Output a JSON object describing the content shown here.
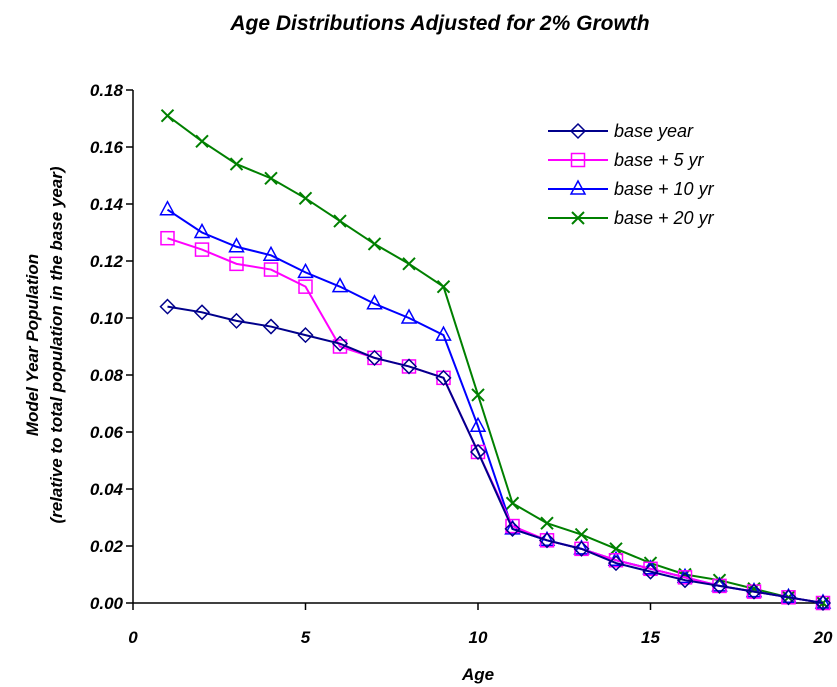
{
  "chart_data": {
    "type": "line",
    "title": "Age Distributions Adjusted for 2% Growth",
    "xlabel": "Age",
    "ylabel_line1": "Model Year Population",
    "ylabel_line2": "(relative to total population in the base year)",
    "xlim": [
      0,
      20
    ],
    "ylim": [
      0,
      0.18
    ],
    "x_ticks": [
      "0",
      "5",
      "10",
      "15",
      "20"
    ],
    "y_ticks": [
      "0.00",
      "0.02",
      "0.04",
      "0.06",
      "0.08",
      "0.10",
      "0.12",
      "0.14",
      "0.16",
      "0.18"
    ],
    "grid": false,
    "legend_position": "top-right",
    "x": [
      1,
      2,
      3,
      4,
      5,
      6,
      7,
      8,
      9,
      10,
      11,
      12,
      13,
      14,
      15,
      16,
      17,
      18,
      19,
      20
    ],
    "series": [
      {
        "name": "base year",
        "color": "#00008b",
        "marker": "diamond",
        "values": [
          0.104,
          0.102,
          0.099,
          0.097,
          0.094,
          0.091,
          0.086,
          0.083,
          0.079,
          0.053,
          0.026,
          0.022,
          0.019,
          0.014,
          0.011,
          0.008,
          0.006,
          0.004,
          0.002,
          0.0
        ]
      },
      {
        "name": "base + 5 yr",
        "color": "#ff00ff",
        "marker": "square",
        "values": [
          0.128,
          0.124,
          0.119,
          0.117,
          0.111,
          0.09,
          0.086,
          0.083,
          0.079,
          0.053,
          0.027,
          0.022,
          0.019,
          0.015,
          0.012,
          0.009,
          0.006,
          0.004,
          0.002,
          0.0
        ]
      },
      {
        "name": "base + 10 yr",
        "color": "#0000ff",
        "marker": "triangle",
        "values": [
          0.138,
          0.13,
          0.125,
          0.122,
          0.116,
          0.111,
          0.105,
          0.1,
          0.094,
          0.062,
          0.026,
          0.022,
          0.019,
          0.015,
          0.012,
          0.009,
          0.006,
          0.004,
          0.002,
          0.0
        ]
      },
      {
        "name": "base + 20 yr",
        "color": "#008000",
        "marker": "x",
        "values": [
          0.171,
          0.162,
          0.154,
          0.149,
          0.142,
          0.134,
          0.126,
          0.119,
          0.111,
          0.073,
          0.035,
          0.028,
          0.024,
          0.019,
          0.014,
          0.01,
          0.008,
          0.005,
          0.002,
          0.0
        ]
      }
    ]
  }
}
